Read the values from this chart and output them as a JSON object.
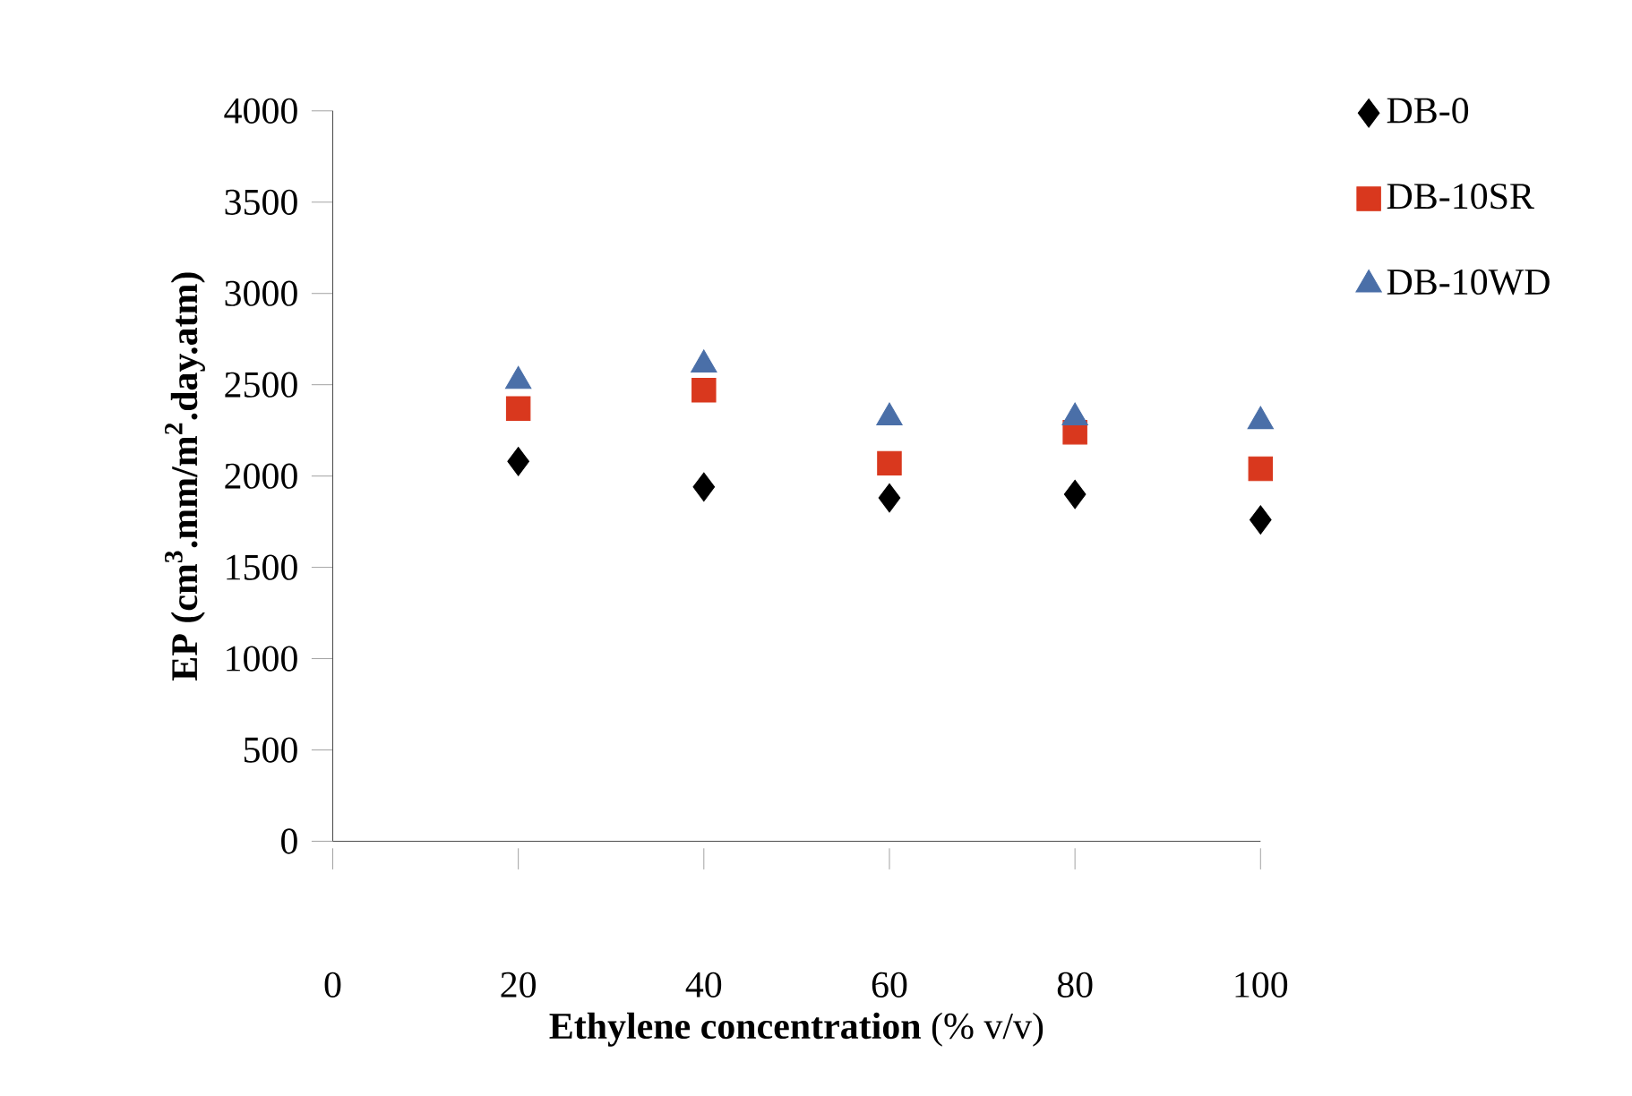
{
  "chart_data": {
    "type": "scatter",
    "xlabel": "**Ethylene concentration** (% v/v)",
    "ylabel": "EP (cm$^{3}$.mm/m$^{2}$.day.atm)",
    "x": [
      20,
      40,
      60,
      80,
      100
    ],
    "series": [
      {
        "name": "DB-0",
        "color": "#000000",
        "marker": "diamond",
        "values": [
          2080,
          1940,
          1880,
          1900,
          1760
        ]
      },
      {
        "name": "DB-10SR",
        "color": "#d9381e",
        "marker": "square",
        "values": [
          2370,
          2470,
          2070,
          2240,
          2040
        ]
      },
      {
        "name": "DB-10WD",
        "color": "#4a6fa8",
        "marker": "triangle",
        "values": [
          2520,
          2610,
          2320,
          2320,
          2300
        ]
      }
    ],
    "xlim": [
      0,
      100
    ],
    "xticks": [
      0,
      20,
      40,
      60,
      80,
      100
    ],
    "ylim": [
      0,
      4000
    ],
    "yticks": [
      0,
      500,
      1000,
      1500,
      2000,
      2500,
      3000,
      3500,
      4000
    ],
    "grid": false,
    "legend": "top right"
  }
}
